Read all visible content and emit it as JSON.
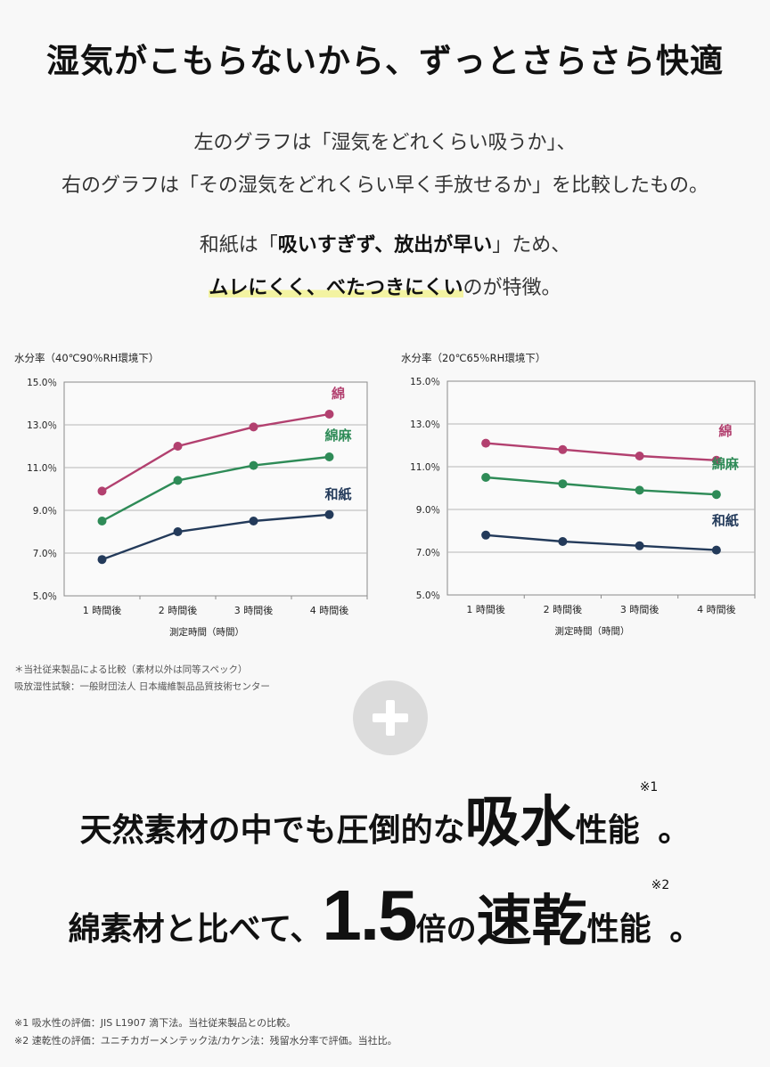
{
  "headline": "湿気がこもらないから、ずっとさらさら快適",
  "intro": {
    "line1": "左のグラフは「湿気をどれくらい吸うか」、",
    "line2": "右のグラフは「その湿気をどれくらい早く手放せるか」を比較したもの。",
    "line3_pre": "和紙は「",
    "line3_strong": "吸いすぎず、放出が早い",
    "line3_post": "」ため、",
    "line4_highlight": "ムレにくく、べたつきにくい",
    "line4_post": "のが特徴。"
  },
  "chart_data": [
    {
      "type": "line",
      "title": "水分率（40℃90％RH環境下）",
      "xlabel": "測定時間（時間）",
      "ylabel": "",
      "categories": [
        "1 時間後",
        "2 時間後",
        "3 時間後",
        "4 時間後"
      ],
      "yticks": [
        "15.0％",
        "13.0％",
        "11.0％",
        "9.0％",
        "7.0％",
        "5.0％"
      ],
      "ylim": [
        5,
        15
      ],
      "grid": true,
      "legend": "inline-right",
      "series": [
        {
          "name": "綿",
          "color": "#b2406f",
          "values": [
            9.9,
            12.0,
            12.9,
            13.5
          ]
        },
        {
          "name": "綿麻",
          "color": "#2e8b57",
          "values": [
            8.5,
            10.4,
            11.1,
            11.5
          ]
        },
        {
          "name": "和紙",
          "color": "#233a5a",
          "values": [
            6.7,
            8.0,
            8.5,
            8.8
          ]
        }
      ]
    },
    {
      "type": "line",
      "title": "水分率（20℃65％RH環境下）",
      "xlabel": "測定時間（時間）",
      "ylabel": "",
      "categories": [
        "1 時間後",
        "2 時間後",
        "3 時間後",
        "4 時間後"
      ],
      "yticks": [
        "15.0％",
        "13.0％",
        "11.0％",
        "9.0％",
        "7.0％",
        "5.0％"
      ],
      "ylim": [
        5,
        15
      ],
      "grid": true,
      "legend": "inline-right",
      "series": [
        {
          "name": "綿",
          "color": "#b2406f",
          "values": [
            12.1,
            11.8,
            11.5,
            11.3
          ]
        },
        {
          "name": "綿麻",
          "color": "#2e8b57",
          "values": [
            10.5,
            10.2,
            9.9,
            9.7
          ]
        },
        {
          "name": "和紙",
          "color": "#233a5a",
          "values": [
            7.8,
            7.5,
            7.3,
            7.1
          ]
        }
      ]
    }
  ],
  "notes": {
    "line1": "＊当社従来製品による比較（素材以外は同等スペック）",
    "line2": "吸放湿性試験：一般財団法人 日本繊維製品品質技術センター"
  },
  "claim1": {
    "pre": "天然素材の中でも圧倒的な",
    "big": "吸水",
    "post": "性能",
    "sup": "※1",
    "end": "。"
  },
  "claim2": {
    "pre": "綿素材と比べて、",
    "num": "1.5",
    "mid": "倍の",
    "big": "速乾",
    "post": "性能",
    "sup": "※2",
    "end": "。"
  },
  "footnotes": {
    "n1": "※1 吸水性の評価：JIS L1907 滴下法。当社従来製品との比較。",
    "n2": "※2 速乾性の評価：ユニチカガーメンテック法/カケン法：残留水分率で評価。当社比。"
  },
  "icons": {
    "plus": "plus-icon"
  }
}
